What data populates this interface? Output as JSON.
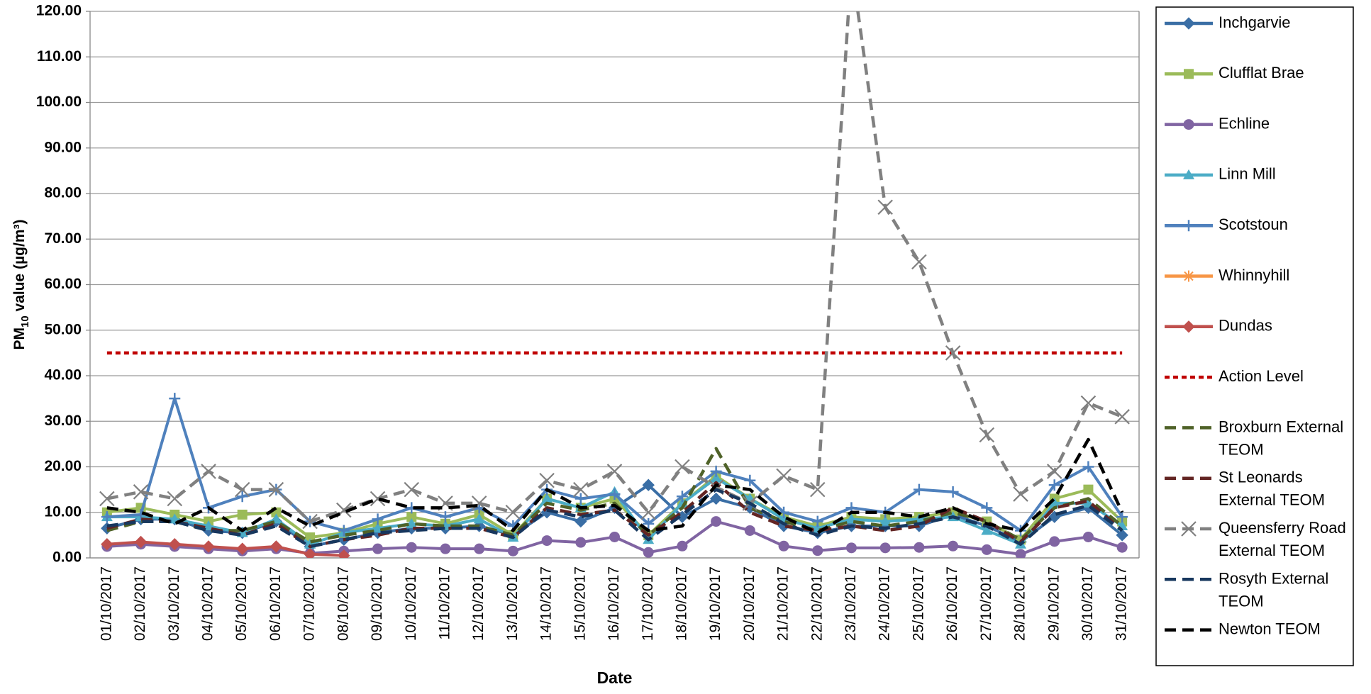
{
  "chart_data": {
    "type": "line",
    "ylabel": [
      "PM",
      "10",
      " value (µg/m³)"
    ],
    "xlabel": "Date",
    "categories": [
      "01/10/2017",
      "02/10/2017",
      "03/10/2017",
      "04/10/2017",
      "05/10/2017",
      "06/10/2017",
      "07/10/2017",
      "08/10/2017",
      "09/10/2017",
      "10/10/2017",
      "11/10/2017",
      "12/10/2017",
      "13/10/2017",
      "14/10/2017",
      "15/10/2017",
      "16/10/2017",
      "17/10/2017",
      "18/10/2017",
      "19/10/2017",
      "20/10/2017",
      "21/10/2017",
      "22/10/2017",
      "23/10/2017",
      "24/10/2017",
      "25/10/2017",
      "26/10/2017",
      "27/10/2017",
      "28/10/2017",
      "29/10/2017",
      "30/10/2017",
      "31/10/2017"
    ],
    "ylim": [
      0,
      120
    ],
    "yticks": [
      {
        "value": 0,
        "label": "0.00"
      },
      {
        "value": 10,
        "label": "10.00"
      },
      {
        "value": 20,
        "label": "20.00"
      },
      {
        "value": 30,
        "label": "30.00"
      },
      {
        "value": 40,
        "label": "40.00"
      },
      {
        "value": 50,
        "label": "50.00"
      },
      {
        "value": 60,
        "label": "60.00"
      },
      {
        "value": 70,
        "label": "70.00"
      },
      {
        "value": 80,
        "label": "80.00"
      },
      {
        "value": 90,
        "label": "90.00"
      },
      {
        "value": 100,
        "label": "100.00"
      },
      {
        "value": 110,
        "label": "110.00"
      },
      {
        "value": 120,
        "label": "120.00"
      }
    ],
    "grid": true,
    "legend": "right",
    "series": [
      {
        "name": "Inchgarvie",
        "color": "#3a6ea5",
        "marker": "diamond",
        "dash": "solid",
        "values": [
          6.5,
          8.5,
          8.5,
          6,
          5.5,
          8,
          2.5,
          4,
          5.5,
          6.5,
          6.5,
          7,
          5,
          10,
          8,
          11,
          16,
          9,
          13,
          11,
          7,
          5.5,
          7,
          7,
          7,
          9.5,
          7,
          3.5,
          9,
          11,
          5
        ]
      },
      {
        "name": "Clufflat Brae",
        "color": "#9bbb59",
        "marker": "square",
        "dash": "solid",
        "values": [
          10,
          11,
          9.5,
          8,
          9.5,
          10,
          4.5,
          5.5,
          7.5,
          9,
          7.5,
          9.5,
          5,
          13,
          11,
          13,
          5,
          12,
          18,
          13,
          9,
          7,
          9,
          8.5,
          9,
          10,
          8,
          4,
          13,
          15,
          8
        ]
      },
      {
        "name": "Echline",
        "color": "#8064a2",
        "marker": "circle",
        "dash": "solid",
        "values": [
          2.5,
          3,
          2.5,
          2,
          1.5,
          2,
          1,
          1.5,
          2,
          2.3,
          2,
          2,
          1.5,
          3.8,
          3.4,
          4.6,
          1.2,
          2.6,
          8,
          6,
          2.6,
          1.6,
          2.2,
          2.2,
          2.3,
          2.6,
          1.8,
          0.8,
          3.6,
          4.6,
          2.3
        ]
      },
      {
        "name": "Linn Mill",
        "color": "#4bacc6",
        "marker": "triangle",
        "dash": "solid",
        "values": [
          9,
          9,
          8.5,
          7,
          5.5,
          8.5,
          3,
          5.5,
          6.5,
          7.5,
          7,
          8.5,
          4.5,
          13,
          11,
          14.5,
          4,
          12,
          17.5,
          13,
          8.5,
          6.5,
          8.5,
          8,
          8.5,
          9,
          6,
          3,
          12,
          12,
          7
        ]
      },
      {
        "name": "Scotstoun",
        "color": "#4f81bd",
        "marker": "plus",
        "dash": "solid",
        "values": [
          9,
          9.5,
          35,
          11,
          13.5,
          15,
          8,
          6,
          8.5,
          11,
          9,
          11,
          7,
          15,
          13,
          14,
          7.5,
          13.5,
          19,
          17,
          10,
          8,
          11,
          10,
          15,
          14.5,
          11,
          6,
          16,
          20,
          9
        ]
      },
      {
        "name": "Whinnyhill",
        "color": "#f79646",
        "marker": "star",
        "dash": "solid",
        "values": [
          null,
          null,
          null,
          null,
          null,
          null,
          null,
          null,
          null,
          null,
          null,
          null,
          null,
          null,
          null,
          null,
          null,
          null,
          null,
          null,
          null,
          null,
          null,
          null,
          null,
          null,
          null,
          null,
          null,
          null,
          null
        ]
      },
      {
        "name": "Dundas",
        "color": "#c0504d",
        "marker": "diamond",
        "dash": "solid",
        "values": [
          3,
          3.5,
          3,
          2.5,
          2,
          2.5,
          0.8,
          0.5,
          null,
          null,
          null,
          null,
          null,
          null,
          null,
          null,
          null,
          null,
          null,
          null,
          null,
          null,
          null,
          null,
          null,
          null,
          null,
          null,
          null,
          null,
          null
        ]
      },
      {
        "name": "Action Level",
        "color": "#c00000",
        "marker": "none",
        "dash": "short",
        "values": [
          45,
          45,
          45,
          45,
          45,
          45,
          45,
          45,
          45,
          45,
          45,
          45,
          45,
          45,
          45,
          45,
          45,
          45,
          45,
          45,
          45,
          45,
          45,
          45,
          45,
          45,
          45,
          45,
          45,
          45,
          45
        ]
      },
      {
        "name": "Broxburn External TEOM",
        "color": "#4f6228",
        "marker": "none",
        "dash": "long",
        "values": [
          6,
          8,
          8,
          6,
          6,
          8,
          3.5,
          5,
          6,
          7.5,
          7,
          7,
          5,
          12,
          10.5,
          12,
          5,
          11,
          24,
          11,
          8,
          6,
          8,
          7,
          8,
          10,
          8,
          4,
          11,
          13,
          7
        ]
      },
      {
        "name": "St Leonards External TEOM",
        "color": "#632523",
        "marker": "none",
        "dash": "long",
        "values": [
          6.5,
          8.5,
          8,
          6.5,
          5,
          7.5,
          2.5,
          4,
          5,
          6.5,
          6.5,
          6.5,
          4.5,
          11,
          9.5,
          10.5,
          5,
          10,
          16.5,
          10,
          7,
          6,
          7,
          6,
          7,
          11,
          8,
          3.5,
          11,
          12.5,
          6
        ]
      },
      {
        "name": "Queensferry Road External TEOM",
        "color": "#808080",
        "marker": "x",
        "dash": "long",
        "values": [
          13,
          14.5,
          13,
          19,
          15,
          15,
          8,
          10.5,
          13,
          15,
          12,
          12,
          10,
          17,
          15,
          19,
          10,
          20,
          15.5,
          12,
          18,
          15,
          130,
          77,
          65,
          45,
          27,
          14,
          19,
          34,
          31
        ]
      },
      {
        "name": "Rosyth External TEOM",
        "color": "#17375e",
        "marker": "none",
        "dash": "long",
        "values": [
          7,
          8,
          8,
          6,
          5,
          7,
          2.5,
          4,
          5.5,
          6,
          6.5,
          6.5,
          4.5,
          10.5,
          9,
          10.5,
          4,
          9.5,
          15,
          12,
          7.5,
          5,
          7,
          6.5,
          7.5,
          9,
          7,
          3,
          9.5,
          11.5,
          6
        ]
      },
      {
        "name": "Newton TEOM",
        "color": "#000000",
        "marker": "none",
        "dash": "long",
        "values": [
          11,
          10,
          7.5,
          11,
          6,
          11,
          7,
          10,
          13,
          11,
          11,
          11.5,
          6,
          15,
          11,
          11.5,
          6,
          7,
          16,
          15,
          9,
          5.5,
          10,
          10,
          9,
          11,
          7.5,
          6,
          13,
          26,
          10
        ]
      }
    ]
  }
}
